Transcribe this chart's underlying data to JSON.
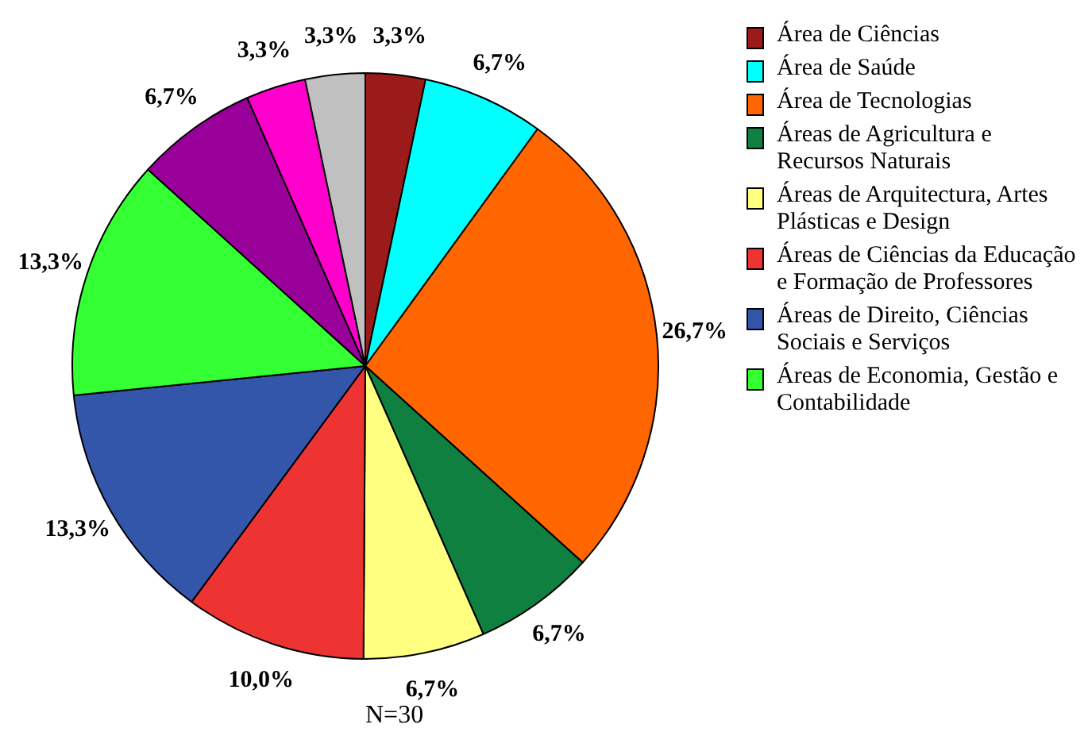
{
  "chart_data": {
    "type": "pie",
    "categories": [
      "Área de Ciências",
      "Área de Saúde",
      "Área de Tecnologias",
      "Áreas de Agricultura e Recursos Naturais",
      "Áreas de Arquitectura, Artes Plásticas e Design",
      "Áreas de Ciências da Educação e Formação de Professores",
      "Áreas de Direito, Ciências Sociais e Serviços",
      "Áreas de Economia, Gestão e Contabilidade",
      null,
      null,
      null
    ],
    "values": [
      3.3,
      6.7,
      26.7,
      6.7,
      6.7,
      10.0,
      13.3,
      13.3,
      6.7,
      3.3,
      3.3
    ],
    "value_labels": [
      "3,3%",
      "6,7%",
      "26,7%",
      "6,7%",
      "6,7%",
      "10,0%",
      "13,3%",
      "13,3%",
      "6,7%",
      "3,3%",
      "3,3%"
    ],
    "colors": [
      "#9b1b1b",
      "#00ffff",
      "#ff6600",
      "#108040",
      "#ffff80",
      "#ee3333",
      "#3355aa",
      "#33ff33",
      "#990099",
      "#ff00cc",
      "#c0c0c0"
    ],
    "legend": "right",
    "annotations": [
      "N=30"
    ]
  }
}
